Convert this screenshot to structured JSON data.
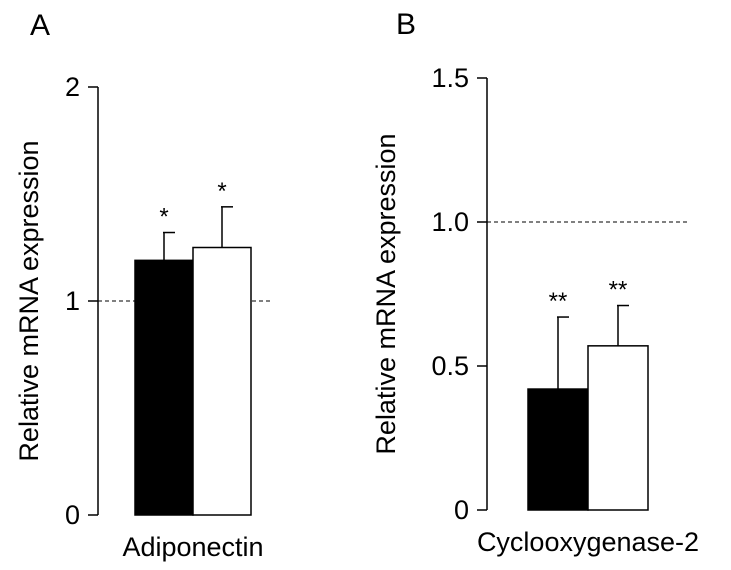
{
  "chart_data": [
    {
      "type": "bar",
      "panel_label": "A",
      "categories": [
        "Adiponectin"
      ],
      "series": [
        {
          "name": "black bar",
          "color": "#000000",
          "values": [
            1.19
          ],
          "error": [
            0.13
          ],
          "significance": "*"
        },
        {
          "name": "white bar",
          "color": "#ffffff",
          "values": [
            1.25
          ],
          "error": [
            0.19
          ],
          "significance": "*"
        }
      ],
      "ylabel": "Relative mRNA expression",
      "xlabel": "Adiponectin",
      "ylim": [
        0,
        2
      ],
      "yticks": [
        0,
        1,
        2
      ],
      "ytick_labels": [
        "0",
        "1",
        "2"
      ],
      "reference_line": 1.0
    },
    {
      "type": "bar",
      "panel_label": "B",
      "categories": [
        "Cyclooxygenase-2"
      ],
      "series": [
        {
          "name": "black bar",
          "color": "#000000",
          "values": [
            0.42
          ],
          "error": [
            0.25
          ],
          "significance": "**"
        },
        {
          "name": "white bar",
          "color": "#ffffff",
          "values": [
            0.57
          ],
          "error": [
            0.14
          ],
          "significance": "**"
        }
      ],
      "ylabel": "Relative mRNA expression",
      "xlabel": "Cyclooxygenase-2",
      "ylim": [
        0,
        1.5
      ],
      "yticks": [
        0,
        0.5,
        1.0,
        1.5
      ],
      "ytick_labels": [
        "0",
        "0.5",
        "1.0",
        "1.5"
      ],
      "reference_line": 1.0
    }
  ]
}
